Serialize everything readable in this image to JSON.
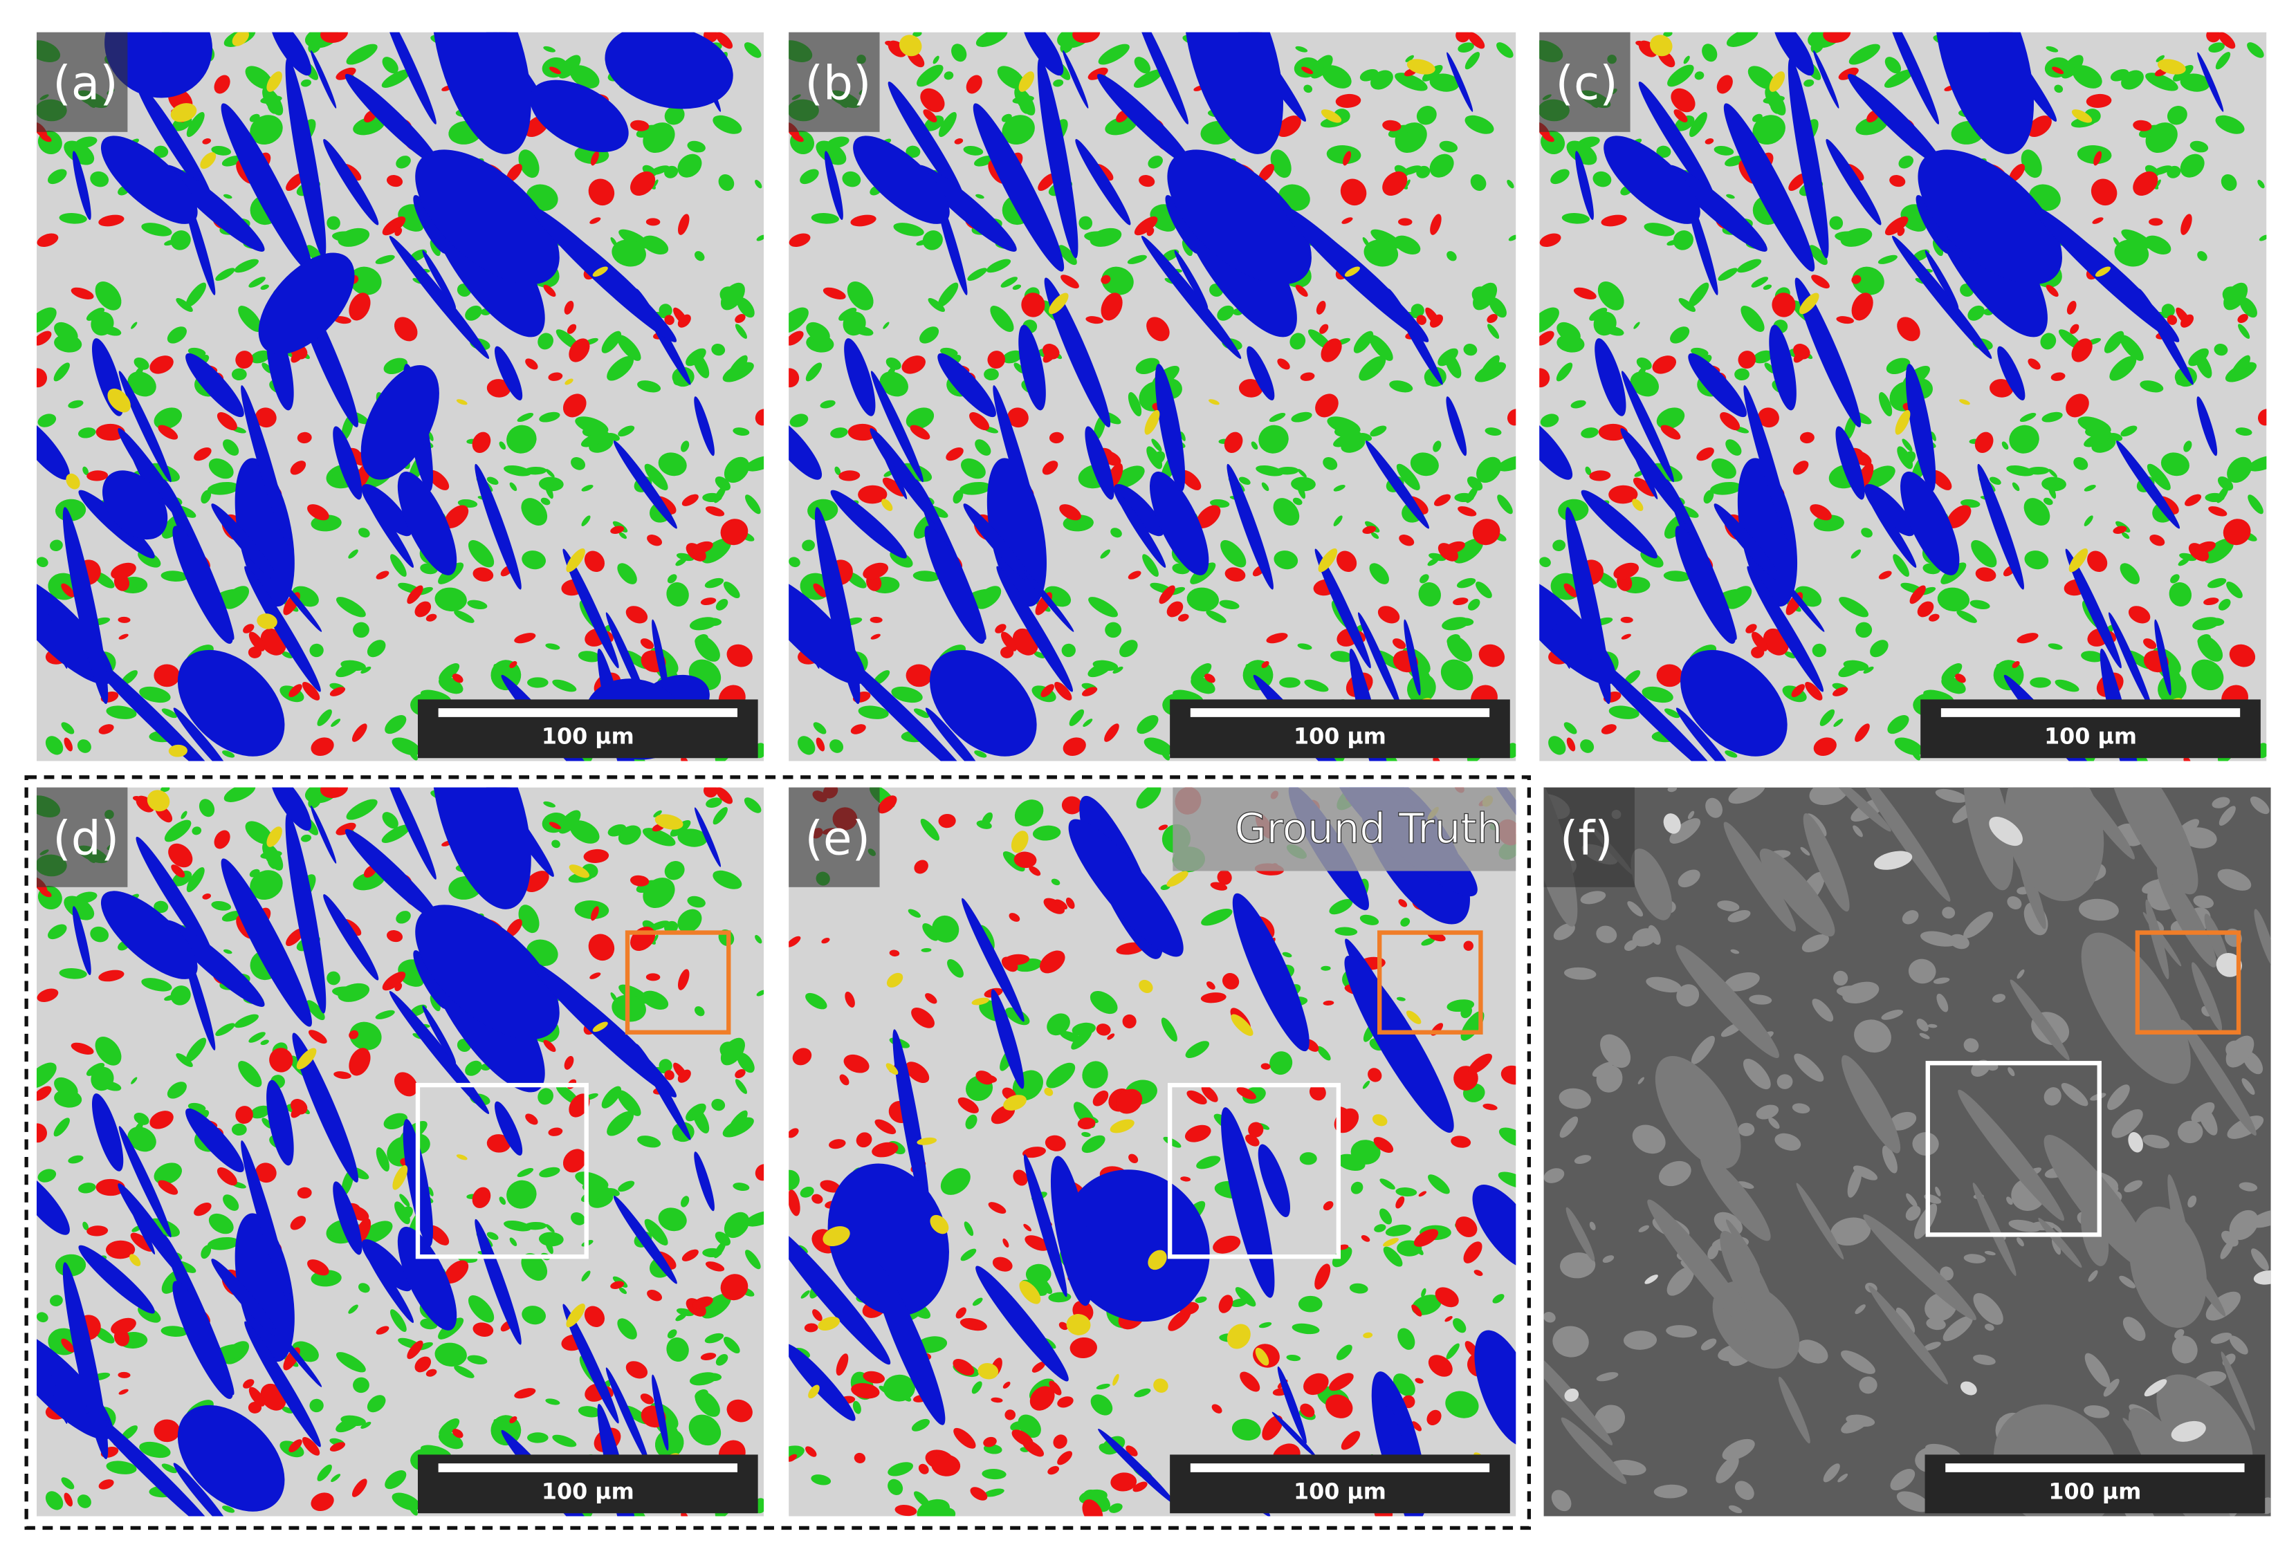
{
  "panels": [
    {
      "label": "(a)",
      "scale_bar": "100 µm"
    },
    {
      "label": "(b)",
      "scale_bar": "100 µm"
    },
    {
      "label": "(c)",
      "scale_bar": "100 µm"
    },
    {
      "label": "(d)",
      "scale_bar": "100 µm"
    },
    {
      "label": "(e)",
      "scale_bar": "100 µm",
      "badge": "Ground Truth"
    },
    {
      "label": "(f)",
      "scale_bar": "100 µm"
    }
  ]
}
